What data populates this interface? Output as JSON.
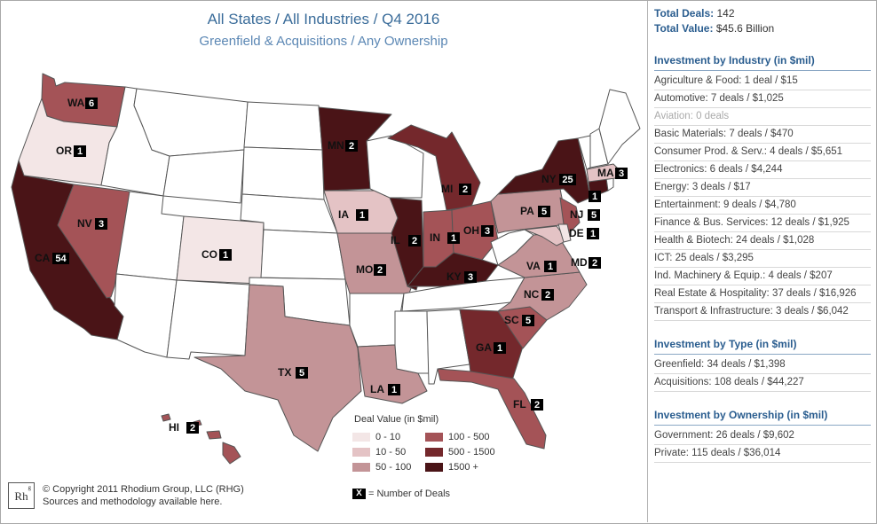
{
  "header": {
    "title": "All States / All Industries / Q4 2016",
    "subtitle": "Greenfield & Acquisitions / Any Ownership"
  },
  "colors": {
    "no_data": "#ffffff",
    "bin_0_10": "#f3e6e6",
    "bin_10_50": "#e4c3c5",
    "bin_50_100": "#c39497",
    "bin_100_500": "#a45357",
    "bin_500_1500": "#74282c",
    "bin_1500_plus": "#4a1417",
    "title_blue": "#3a6c9a",
    "panel_blue": "#2a5d8f"
  },
  "states": [
    {
      "code": "WA",
      "deals": "6"
    },
    {
      "code": "OR",
      "deals": "1"
    },
    {
      "code": "CA",
      "deals": "54"
    },
    {
      "code": "NV",
      "deals": "3"
    },
    {
      "code": "CO",
      "deals": "1"
    },
    {
      "code": "MN",
      "deals": "2"
    },
    {
      "code": "IA",
      "deals": "1"
    },
    {
      "code": "MO",
      "deals": "2"
    },
    {
      "code": "IL",
      "deals": "2"
    },
    {
      "code": "IN",
      "deals": "1"
    },
    {
      "code": "MI",
      "deals": "2"
    },
    {
      "code": "OH",
      "deals": "3"
    },
    {
      "code": "KY",
      "deals": "3"
    },
    {
      "code": "TX",
      "deals": "5"
    },
    {
      "code": "LA",
      "deals": "1"
    },
    {
      "code": "GA",
      "deals": "1"
    },
    {
      "code": "FL",
      "deals": "2"
    },
    {
      "code": "SC",
      "deals": "5"
    },
    {
      "code": "NC",
      "deals": "2"
    },
    {
      "code": "VA",
      "deals": "1"
    },
    {
      "code": "PA",
      "deals": "5"
    },
    {
      "code": "NY",
      "deals": "25"
    },
    {
      "code": "NJ",
      "deals": "5"
    },
    {
      "code": "DE",
      "deals": "1"
    },
    {
      "code": "MD",
      "deals": "2"
    },
    {
      "code": "MA",
      "deals": "3"
    },
    {
      "code": "CT",
      "deals": "1"
    },
    {
      "code": "HI",
      "deals": "2"
    }
  ],
  "legend": {
    "title": "Deal Value (in $mil)",
    "items": [
      "0 - 10",
      "10 - 50",
      "50 - 100",
      "100 - 500",
      "500 - 1500",
      "1500 +"
    ],
    "note_symbol": "X",
    "note_text": "= Number of Deals"
  },
  "copyright": {
    "logo": "Rh",
    "logo_sup": "g",
    "line1": "© Copyright 2011 Rhodium Group, LLC (RHG)",
    "line2": "Sources and methodology available here."
  },
  "panel": {
    "total_deals_label": "Total Deals:",
    "total_deals_value": "142",
    "total_value_label": "Total Value:",
    "total_value_value": "$45.6 Billion",
    "industry": {
      "heading": "Investment by Industry (in $mil)",
      "rows": [
        "Agriculture & Food: 1 deal / $15",
        "Automotive: 7 deals / $1,025",
        "Aviation: 0 deals",
        "Basic Materials: 7 deals / $470",
        "Consumer Prod. & Serv.: 4 deals / $5,651",
        "Electronics: 6 deals / $4,244",
        "Energy: 3 deals / $17",
        "Entertainment: 9 deals / $4,780",
        "Finance & Bus. Services: 12 deals / $1,925",
        "Health & Biotech: 24 deals / $1,028",
        "ICT: 25 deals / $3,295",
        "Ind. Machinery & Equip.: 4 deals / $207",
        "Real Estate & Hospitality: 37 deals / $16,926",
        "Transport & Infrastructure: 3 deals / $6,042"
      ]
    },
    "type": {
      "heading": "Investment by Type (in $mil)",
      "rows": [
        "Greenfield: 34 deals / $1,398",
        "Acquisitions: 108 deals / $44,227"
      ]
    },
    "ownership": {
      "heading": "Investment by Ownership (in $mil)",
      "rows": [
        "Government: 26 deals / $9,602",
        "Private: 115 deals / $36,014"
      ]
    }
  }
}
